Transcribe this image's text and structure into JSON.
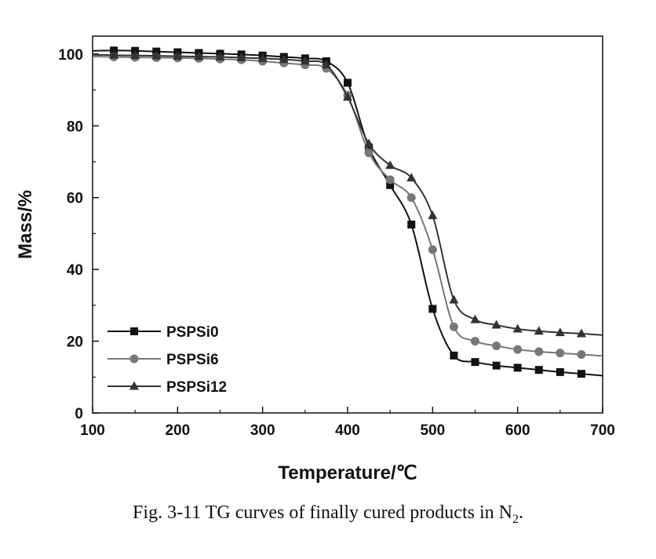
{
  "chart_data": {
    "type": "line",
    "xlabel": "Temperature/℃",
    "ylabel": "Mass/%",
    "xlim": [
      100,
      700
    ],
    "ylim": [
      0,
      105
    ],
    "xticks": [
      100,
      200,
      300,
      400,
      500,
      600,
      700
    ],
    "yticks": [
      0,
      20,
      40,
      60,
      80,
      100
    ],
    "grid": false,
    "legend_position": "bottom-left",
    "series": [
      {
        "name": "PSPSi0",
        "marker": "square",
        "color": "#111111",
        "x": [
          100,
          125,
          150,
          175,
          200,
          225,
          250,
          275,
          300,
          325,
          350,
          375,
          400,
          425,
          450,
          475,
          500,
          525,
          550,
          575,
          600,
          625,
          650,
          675,
          700
        ],
        "y": [
          100.9,
          101,
          100.9,
          100.7,
          100.5,
          100.3,
          100.1,
          99.9,
          99.6,
          99.2,
          98.8,
          98.0,
          92.0,
          74.0,
          63.5,
          52.5,
          29.0,
          16.0,
          14.2,
          13.2,
          12.6,
          12.0,
          11.4,
          10.9,
          10.4
        ]
      },
      {
        "name": "PSPSi6",
        "marker": "circle",
        "color": "#777777",
        "x": [
          100,
          125,
          150,
          175,
          200,
          225,
          250,
          275,
          300,
          325,
          350,
          375,
          400,
          425,
          450,
          475,
          500,
          525,
          550,
          575,
          600,
          625,
          650,
          675,
          700
        ],
        "y": [
          99.3,
          99.2,
          99.1,
          99.0,
          98.9,
          98.8,
          98.6,
          98.4,
          98.0,
          97.5,
          97.0,
          96.0,
          88.5,
          72.5,
          65.0,
          60.0,
          45.5,
          24.0,
          20.0,
          18.7,
          17.7,
          17.1,
          16.7,
          16.3,
          15.9
        ]
      },
      {
        "name": "PSPSi12",
        "marker": "triangle",
        "color": "#333333",
        "x": [
          100,
          125,
          150,
          175,
          200,
          225,
          250,
          275,
          300,
          325,
          350,
          375,
          400,
          425,
          450,
          475,
          500,
          525,
          550,
          575,
          600,
          625,
          650,
          675,
          700
        ],
        "y": [
          99.8,
          99.7,
          99.6,
          99.5,
          99.4,
          99.3,
          99.2,
          99.0,
          98.8,
          98.5,
          98.0,
          97.0,
          88.0,
          75.0,
          69.0,
          65.5,
          55.0,
          31.5,
          26.0,
          24.5,
          23.4,
          22.8,
          22.4,
          22.1,
          21.7
        ]
      }
    ]
  },
  "caption": {
    "text": "Fig. 3-11 TG curves of finally cured products in N",
    "subscript": "2",
    "suffix": "."
  }
}
